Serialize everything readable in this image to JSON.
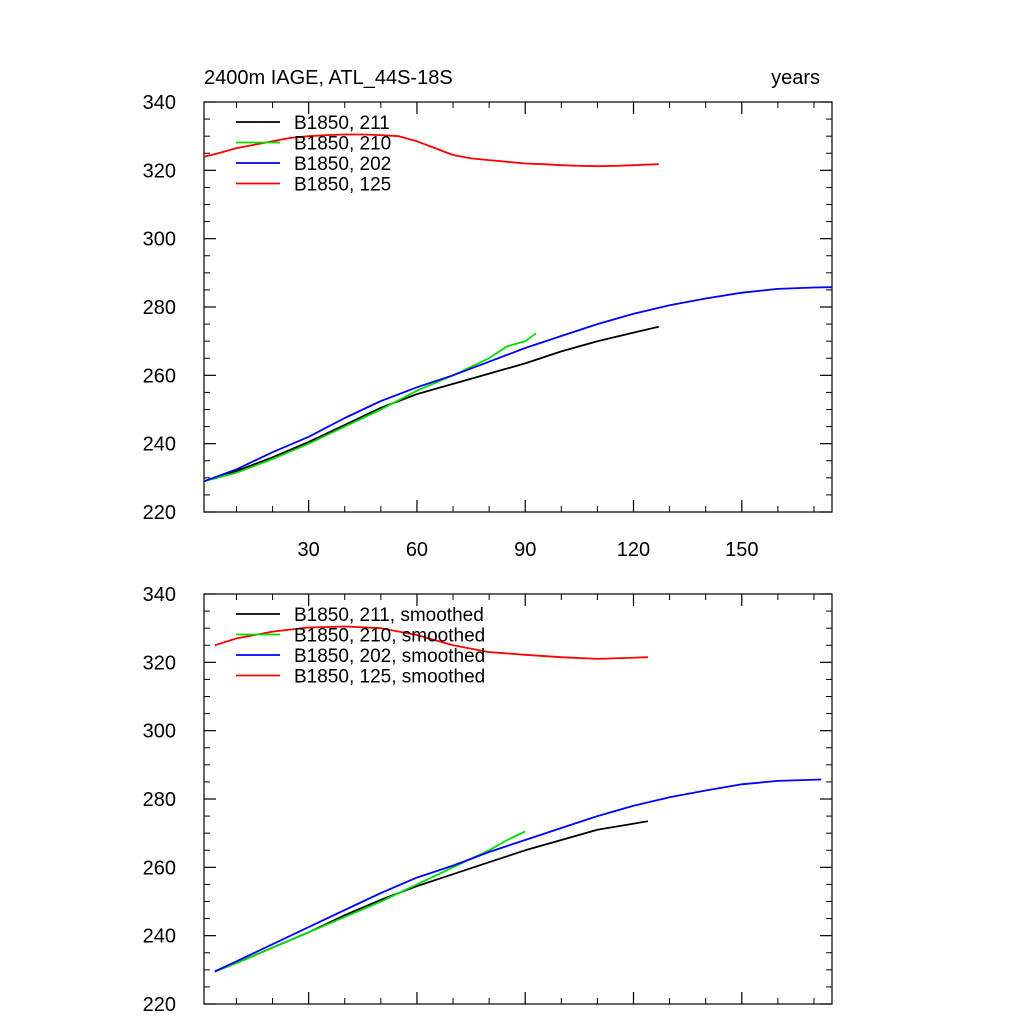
{
  "chart_data": [
    {
      "type": "line",
      "title": "2400m IAGE, ATL_44S-18S",
      "right_title": "years",
      "xlim": [
        1,
        175
      ],
      "ylim": [
        220,
        340
      ],
      "xticks": [
        30,
        60,
        90,
        120,
        150
      ],
      "yticks": [
        220,
        240,
        260,
        280,
        300,
        320,
        340
      ],
      "legend_position": "top-left",
      "series": [
        {
          "name": "B1850, 211",
          "color": "#000000",
          "x": [
            1,
            10,
            20,
            30,
            40,
            50,
            60,
            70,
            80,
            90,
            100,
            110,
            120,
            127
          ],
          "y": [
            229,
            232,
            236,
            240.5,
            245.5,
            250.5,
            254.5,
            257.5,
            260.5,
            263.5,
            267,
            270,
            272.5,
            274.2
          ]
        },
        {
          "name": "B1850, 210",
          "color": "#00dd00",
          "x": [
            1,
            10,
            20,
            30,
            40,
            50,
            60,
            70,
            80,
            85,
            90,
            93
          ],
          "y": [
            229,
            231.5,
            235.5,
            240,
            245,
            250,
            255.5,
            260,
            265,
            268.5,
            270,
            272.3
          ]
        },
        {
          "name": "B1850, 202",
          "color": "#0000ff",
          "x": [
            1,
            10,
            20,
            30,
            40,
            50,
            60,
            70,
            80,
            90,
            100,
            110,
            120,
            130,
            140,
            150,
            160,
            170,
            175
          ],
          "y": [
            229,
            232.5,
            237.5,
            242,
            247.5,
            252.5,
            256.5,
            260,
            264,
            268,
            271.5,
            275,
            278,
            280.5,
            282.5,
            284.2,
            285.3,
            285.7,
            285.8
          ]
        },
        {
          "name": "B1850, 125",
          "color": "#ff0000",
          "x": [
            1,
            5,
            10,
            15,
            20,
            25,
            30,
            35,
            40,
            45,
            50,
            55,
            60,
            65,
            70,
            75,
            80,
            85,
            90,
            95,
            100,
            105,
            110,
            115,
            120,
            127
          ],
          "y": [
            324,
            325,
            326.5,
            327.5,
            328.5,
            329.5,
            330,
            330.3,
            330.5,
            330.5,
            330.3,
            330,
            328.5,
            326.5,
            324.5,
            323.5,
            323,
            322.5,
            322,
            321.8,
            321.5,
            321.3,
            321.2,
            321.3,
            321.5,
            321.8
          ]
        }
      ]
    },
    {
      "type": "line",
      "title": "",
      "xlim": [
        1,
        175
      ],
      "ylim": [
        220,
        340
      ],
      "xticks": [
        30,
        60,
        90,
        120,
        150
      ],
      "yticks": [
        220,
        240,
        260,
        280,
        300,
        320,
        340
      ],
      "legend_position": "top-left",
      "series": [
        {
          "name": "B1850, 211, smoothed",
          "color": "#000000",
          "x": [
            4,
            10,
            20,
            30,
            40,
            50,
            60,
            70,
            80,
            90,
            100,
            110,
            124
          ],
          "y": [
            229.5,
            232,
            236.5,
            241,
            246,
            250.5,
            254.5,
            258,
            261.5,
            265,
            268,
            271,
            273.5
          ]
        },
        {
          "name": "B1850, 210, smoothed",
          "color": "#00dd00",
          "x": [
            4,
            10,
            20,
            30,
            40,
            50,
            60,
            70,
            80,
            85,
            90
          ],
          "y": [
            229.5,
            232,
            236.5,
            241,
            245.5,
            250,
            255,
            260,
            265,
            268,
            270.5
          ]
        },
        {
          "name": "B1850, 202, smoothed",
          "color": "#0000ff",
          "x": [
            4,
            10,
            20,
            30,
            40,
            50,
            60,
            70,
            80,
            90,
            100,
            110,
            120,
            130,
            140,
            150,
            160,
            172
          ],
          "y": [
            229.5,
            232.5,
            237.5,
            242.5,
            247.5,
            252.5,
            257,
            260.5,
            264.5,
            268,
            271.5,
            275,
            278,
            280.5,
            282.5,
            284.3,
            285.3,
            285.7
          ]
        },
        {
          "name": "B1850, 125, smoothed",
          "color": "#ff0000",
          "x": [
            4,
            10,
            20,
            30,
            40,
            50,
            60,
            70,
            80,
            90,
            100,
            110,
            124
          ],
          "y": [
            325,
            327,
            329,
            330.2,
            330.5,
            330,
            328,
            325,
            323,
            322.2,
            321.5,
            321,
            321.5
          ]
        }
      ]
    }
  ]
}
